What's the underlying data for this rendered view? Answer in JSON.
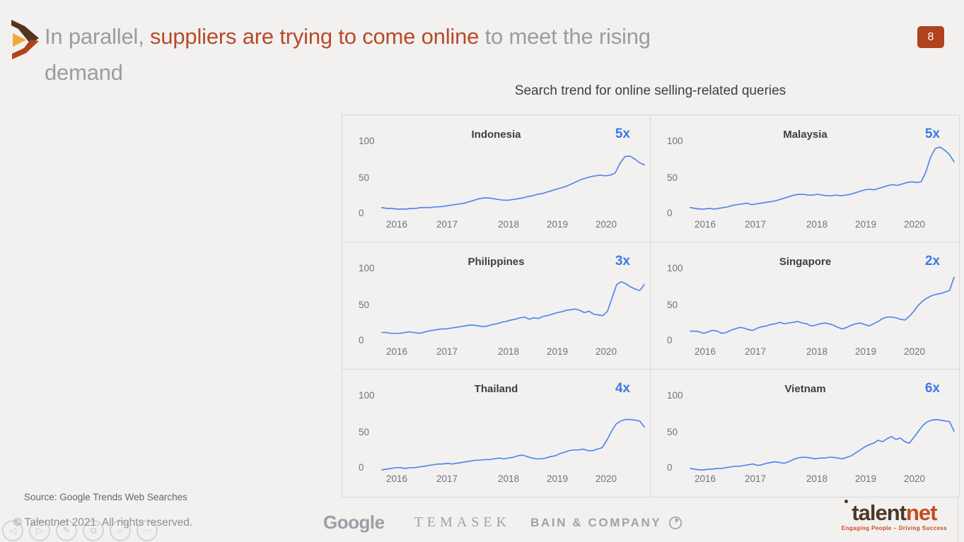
{
  "slide": {
    "title": {
      "gray1": "In parallel, ",
      "highlight": "suppliers are trying to come online",
      "gray2": " to meet the rising",
      "line2": "demand"
    },
    "page_number": "8"
  },
  "charts_section": {
    "heading": "Search trend for online selling-related queries",
    "y_ticks": [
      "100",
      "50",
      "0"
    ],
    "x_ticks": [
      "2016",
      "2017",
      "2018",
      "2019",
      "2020"
    ],
    "line_color": "#5486ec",
    "multiplier_color": "#3e78e8"
  },
  "chart_data": [
    {
      "type": "line",
      "title": "Indonesia",
      "annotation": "5x",
      "ylim": [
        0,
        100
      ],
      "x_ticks": [
        "2016",
        "2017",
        "2018",
        "2019",
        "2020"
      ],
      "values": [
        10,
        9,
        9,
        8,
        8,
        8,
        9,
        9,
        10,
        10,
        10,
        11,
        11,
        12,
        13,
        14,
        15,
        16,
        18,
        20,
        22,
        23,
        23,
        22,
        21,
        20,
        20,
        21,
        22,
        23,
        25,
        26,
        28,
        29,
        31,
        33,
        35,
        37,
        39,
        42,
        45,
        48,
        50,
        52,
        53,
        54,
        53,
        54,
        57,
        70,
        79,
        80,
        76,
        71,
        68
      ]
    },
    {
      "type": "line",
      "title": "Malaysia",
      "annotation": "5x",
      "ylim": [
        0,
        100
      ],
      "x_ticks": [
        "2016",
        "2017",
        "2018",
        "2019",
        "2020"
      ],
      "values": [
        10,
        9,
        8,
        8,
        9,
        8,
        9,
        10,
        11,
        13,
        14,
        15,
        16,
        14,
        15,
        16,
        17,
        18,
        19,
        21,
        23,
        25,
        27,
        28,
        28,
        27,
        27,
        28,
        27,
        26,
        26,
        27,
        26,
        27,
        28,
        30,
        32,
        34,
        35,
        34,
        36,
        38,
        40,
        41,
        40,
        42,
        44,
        45,
        44,
        45,
        58,
        78,
        90,
        92,
        88,
        82,
        72
      ]
    },
    {
      "type": "line",
      "title": "Philippines",
      "annotation": "3x",
      "ylim": [
        0,
        100
      ],
      "x_ticks": [
        "2016",
        "2017",
        "2018",
        "2019",
        "2020"
      ],
      "values": [
        13,
        13,
        12,
        12,
        12,
        13,
        14,
        13,
        12,
        13,
        15,
        16,
        17,
        18,
        18,
        19,
        20,
        21,
        22,
        23,
        23,
        22,
        21,
        22,
        24,
        25,
        27,
        28,
        30,
        31,
        33,
        34,
        31,
        33,
        32,
        35,
        36,
        38,
        40,
        41,
        43,
        44,
        45,
        43,
        40,
        42,
        38,
        37,
        36,
        42,
        60,
        78,
        82,
        79,
        75,
        72,
        70,
        78
      ]
    },
    {
      "type": "line",
      "title": "Singapore",
      "annotation": "2x",
      "ylim": [
        0,
        100
      ],
      "x_ticks": [
        "2016",
        "2017",
        "2018",
        "2019",
        "2020"
      ],
      "values": [
        15,
        15,
        14,
        12,
        14,
        16,
        15,
        12,
        13,
        16,
        18,
        20,
        19,
        17,
        16,
        19,
        21,
        22,
        24,
        25,
        27,
        25,
        26,
        27,
        28,
        26,
        25,
        22,
        23,
        25,
        26,
        25,
        23,
        20,
        18,
        20,
        23,
        25,
        26,
        24,
        22,
        25,
        28,
        32,
        34,
        34,
        33,
        31,
        30,
        35,
        42,
        50,
        56,
        60,
        63,
        65,
        66,
        68,
        70,
        88
      ]
    },
    {
      "type": "line",
      "title": "Thailand",
      "annotation": "4x",
      "ylim": [
        0,
        100
      ],
      "x_ticks": [
        "2016",
        "2017",
        "2018",
        "2019",
        "2020"
      ],
      "values": [
        0,
        1,
        2,
        3,
        3,
        2,
        3,
        3,
        4,
        5,
        6,
        7,
        8,
        8,
        9,
        8,
        9,
        10,
        11,
        12,
        13,
        13,
        14,
        14,
        15,
        16,
        15,
        16,
        17,
        19,
        20,
        18,
        16,
        15,
        15,
        16,
        18,
        19,
        22,
        24,
        26,
        27,
        27,
        28,
        26,
        26,
        28,
        30,
        40,
        52,
        62,
        66,
        68,
        68,
        67,
        66,
        58
      ]
    },
    {
      "type": "line",
      "title": "Vietnam",
      "annotation": "6x",
      "ylim": [
        0,
        100
      ],
      "x_ticks": [
        "2016",
        "2017",
        "2018",
        "2019",
        "2020"
      ],
      "values": [
        2,
        1,
        0,
        0,
        1,
        1,
        2,
        2,
        3,
        4,
        5,
        5,
        6,
        7,
        8,
        6,
        7,
        9,
        10,
        11,
        10,
        9,
        11,
        14,
        16,
        17,
        17,
        16,
        15,
        16,
        16,
        17,
        17,
        16,
        15,
        17,
        19,
        23,
        27,
        31,
        34,
        36,
        40,
        38,
        42,
        45,
        41,
        43,
        38,
        36,
        44,
        52,
        60,
        65,
        67,
        68,
        67,
        66,
        65,
        52
      ]
    }
  ],
  "footer": {
    "source": "Source: Google Trends Web Searches",
    "copyright": "© Talentnet 2021. All rights reserved.",
    "logos": {
      "google": "Google",
      "temasek": "TEMASEK",
      "bain": "BAIN & COMPANY"
    },
    "brand": {
      "name_part1": "talent",
      "name_part2": "net",
      "tagline": "Engaging People – Driving Success"
    },
    "nav_icons": [
      {
        "name": "prev-icon",
        "glyph": "◁"
      },
      {
        "name": "next-icon",
        "glyph": "▷"
      },
      {
        "name": "pen-icon",
        "glyph": "✎"
      },
      {
        "name": "copy-icon",
        "glyph": "⧉"
      },
      {
        "name": "zoom-icon",
        "glyph": "⌕"
      },
      {
        "name": "more-icon",
        "glyph": "⋯"
      }
    ]
  }
}
